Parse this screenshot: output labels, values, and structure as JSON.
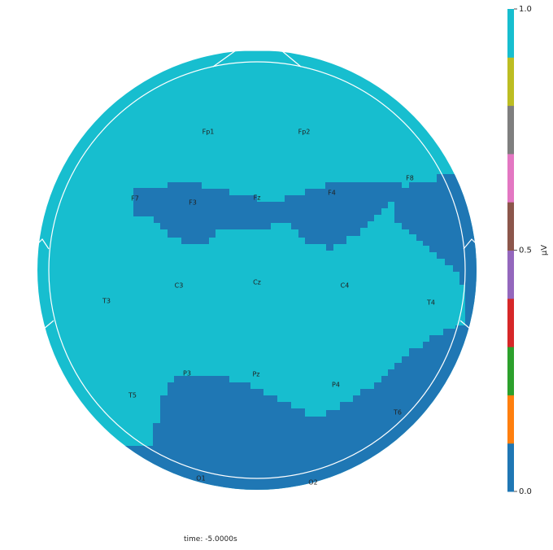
{
  "chart_data": {
    "type": "heatmap",
    "title": "",
    "xlabel": "",
    "ylabel": "",
    "colorbar": {
      "label": "µV",
      "range": [
        0.0,
        1.0
      ],
      "tick_labels": [
        "1.0",
        "0.5",
        "0.0"
      ],
      "tick_values": [
        1.0,
        0.5,
        0.0
      ],
      "colors": [
        "#1f77b4",
        "#ff7f0e",
        "#2ca02c",
        "#d62728",
        "#9467bd",
        "#8c564b",
        "#e377c2",
        "#7f7f7f",
        "#bcbd22",
        "#17becf"
      ]
    },
    "high_color": "#17becf",
    "low_color": "#1f77b4",
    "electrodes": [
      {
        "name": "Fp1"
      },
      {
        "name": "Fp2"
      },
      {
        "name": "F7"
      },
      {
        "name": "F3"
      },
      {
        "name": "Fz"
      },
      {
        "name": "F4"
      },
      {
        "name": "F8"
      },
      {
        "name": "T3"
      },
      {
        "name": "C3"
      },
      {
        "name": "Cz"
      },
      {
        "name": "C4"
      },
      {
        "name": "T4"
      },
      {
        "name": "T5"
      },
      {
        "name": "P3"
      },
      {
        "name": "Pz"
      },
      {
        "name": "P4"
      },
      {
        "name": "T6"
      },
      {
        "name": "O1"
      },
      {
        "name": "O2"
      }
    ],
    "time_label": "time: -5.0000s"
  }
}
